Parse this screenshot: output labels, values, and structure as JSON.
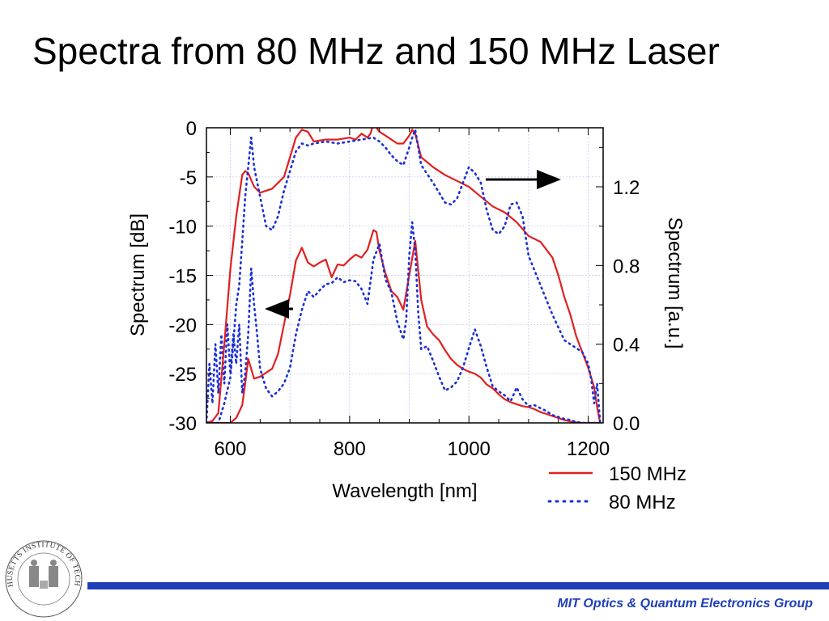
{
  "slide": {
    "title": "Spectra from 80 MHz and 150 MHz Laser",
    "footer": "MIT Optics & Quantum Electronics Group",
    "logo_text": "MASSACHUSETTS INSTITUTE OF TECHNOLOGY"
  },
  "chart_data": {
    "type": "line",
    "title": "",
    "xlabel": "Wavelength [nm]",
    "ylabel_left": "Spectrum [dB]",
    "ylabel_right": "Spectrum [a.u.]",
    "xlim": [
      560,
      1225
    ],
    "ylim_left": [
      -30,
      0
    ],
    "ylim_right": [
      0,
      1.5
    ],
    "x_ticks": [
      600,
      800,
      1000,
      1200
    ],
    "y_ticks_left": [
      0,
      -5,
      -10,
      -15,
      -20,
      -25,
      -30
    ],
    "y_ticks_right": [
      0.0,
      0.4,
      0.8,
      1.2
    ],
    "y_tick_labels_left": [
      "0",
      "-5",
      "-10",
      "-15",
      "-20",
      "-25",
      "-30"
    ],
    "y_tick_labels_right": [
      "0.0",
      "0.4",
      "0.8",
      "1.2"
    ],
    "grid": true,
    "legend_position": "bottom-right, outside plot",
    "series": [
      {
        "name": "150 MHz",
        "axis": "left",
        "scale": "dB",
        "color": "#e02020",
        "style": "solid",
        "x": [
          560,
          580,
          590,
          600,
          610,
          620,
          625,
          630,
          640,
          650,
          670,
          680,
          690,
          700,
          710,
          720,
          730,
          740,
          750,
          760,
          770,
          780,
          790,
          800,
          810,
          820,
          830,
          840,
          845,
          850,
          860,
          870,
          880,
          890,
          900,
          910,
          920,
          930,
          940,
          950,
          960,
          970,
          980,
          990,
          1000,
          1010,
          1020,
          1030,
          1040,
          1050,
          1060,
          1070,
          1080,
          1090,
          1100,
          1110,
          1120,
          1130,
          1140,
          1150,
          1160,
          1170,
          1180,
          1190,
          1200,
          1210,
          1220
        ],
        "y": [
          -30,
          -30,
          -30,
          -30,
          -29.5,
          -28.2,
          -26,
          -23.5,
          -25.5,
          -25.3,
          -24.5,
          -23,
          -20,
          -17,
          -13.5,
          -12.2,
          -13.7,
          -14.1,
          -13.7,
          -13.4,
          -15.2,
          -13.9,
          -14,
          -13.4,
          -12.9,
          -13.2,
          -12.4,
          -10.4,
          -10.6,
          -12.5,
          -14.8,
          -16.6,
          -17.2,
          -18.5,
          -15,
          -11.5,
          -17.5,
          -20.2,
          -21,
          -21.6,
          -22.6,
          -23.5,
          -24.1,
          -24.5,
          -24.8,
          -25,
          -25.4,
          -26.1,
          -26.5,
          -27.1,
          -27.6,
          -27.9,
          -28.1,
          -28.3,
          -28.4,
          -28.6,
          -28.9,
          -29.1,
          -29.3,
          -29.5,
          -29.7,
          -29.85,
          -29.95,
          -30,
          -30,
          -30,
          -30
        ]
      },
      {
        "name": "80 MHz",
        "axis": "left",
        "scale": "dB",
        "color": "#1a2fd6",
        "style": "dotted",
        "x": [
          560,
          565,
          570,
          575,
          580,
          585,
          590,
          595,
          600,
          605,
          610,
          615,
          620,
          625,
          630,
          635,
          640,
          645,
          650,
          660,
          670,
          680,
          690,
          700,
          710,
          720,
          730,
          740,
          750,
          760,
          770,
          780,
          790,
          800,
          810,
          820,
          830,
          840,
          850,
          860,
          870,
          880,
          890,
          895,
          900,
          905,
          910,
          915,
          920,
          930,
          940,
          950,
          960,
          970,
          980,
          990,
          1000,
          1010,
          1020,
          1030,
          1040,
          1050,
          1060,
          1070,
          1080,
          1090,
          1100,
          1110,
          1120,
          1130,
          1140,
          1150,
          1160,
          1170,
          1180,
          1190,
          1200,
          1210,
          1220
        ],
        "y": [
          -30,
          -24,
          -28,
          -22,
          -27,
          -21,
          -26,
          -20,
          -25,
          -21,
          -24,
          -20,
          -27,
          -25,
          -21,
          -14.3,
          -18,
          -21,
          -24.5,
          -26.5,
          -27.3,
          -26.8,
          -26,
          -24.4,
          -21,
          -18.5,
          -16.6,
          -17.2,
          -16.5,
          -15.9,
          -15.8,
          -15.2,
          -15.7,
          -15.5,
          -15.6,
          -16.4,
          -17.9,
          -13.4,
          -11.8,
          -15.4,
          -16.7,
          -19.7,
          -21.5,
          -19.5,
          -13,
          -9.6,
          -12.5,
          -18.8,
          -22.5,
          -22.2,
          -23.7,
          -25.3,
          -26.7,
          -26.4,
          -25.8,
          -24.4,
          -22.4,
          -20.5,
          -22.2,
          -24.4,
          -26.3,
          -26.8,
          -27.2,
          -27.8,
          -26.4,
          -27.6,
          -28.3,
          -28.2,
          -28.5,
          -28.8,
          -29.2,
          -29.4,
          -29.6,
          -29.7,
          -29.9,
          -30,
          -30,
          -30,
          -30
        ]
      },
      {
        "name": "150 MHz",
        "axis": "right",
        "scale": "linear",
        "color": "#e02020",
        "style": "solid",
        "x": [
          560,
          570,
          580,
          590,
          600,
          610,
          620,
          625,
          630,
          640,
          650,
          670,
          690,
          700,
          710,
          720,
          730,
          740,
          760,
          780,
          800,
          810,
          820,
          830,
          835,
          840,
          845,
          850,
          860,
          870,
          880,
          890,
          900,
          905,
          910,
          920,
          940,
          960,
          980,
          1000,
          1020,
          1040,
          1060,
          1080,
          1100,
          1120,
          1140,
          1150,
          1160,
          1170,
          1180,
          1190,
          1200,
          1210,
          1215,
          1220
        ],
        "y": [
          0.0,
          0.01,
          0.05,
          0.4,
          0.78,
          1.05,
          1.26,
          1.28,
          1.27,
          1.2,
          1.17,
          1.19,
          1.25,
          1.35,
          1.45,
          1.49,
          1.48,
          1.43,
          1.44,
          1.44,
          1.45,
          1.44,
          1.47,
          1.45,
          1.47,
          1.52,
          1.5,
          1.48,
          1.46,
          1.44,
          1.42,
          1.42,
          1.46,
          1.49,
          1.47,
          1.35,
          1.3,
          1.26,
          1.23,
          1.2,
          1.15,
          1.1,
          1.07,
          1.02,
          0.95,
          0.92,
          0.84,
          0.75,
          0.64,
          0.55,
          0.44,
          0.36,
          0.28,
          0.18,
          0.08,
          0.0
        ]
      },
      {
        "name": "80 MHz",
        "axis": "right",
        "scale": "linear",
        "color": "#1a2fd6",
        "style": "dotted",
        "x": [
          560,
          580,
          590,
          600,
          605,
          610,
          615,
          620,
          625,
          630,
          635,
          640,
          650,
          660,
          670,
          680,
          690,
          700,
          710,
          720,
          730,
          740,
          760,
          780,
          800,
          820,
          840,
          850,
          860,
          870,
          880,
          890,
          900,
          905,
          910,
          920,
          940,
          950,
          960,
          970,
          980,
          990,
          1000,
          1010,
          1020,
          1030,
          1040,
          1050,
          1060,
          1070,
          1080,
          1090,
          1100,
          1120,
          1140,
          1160,
          1180,
          1190,
          1200,
          1205,
          1210,
          1215,
          1220
        ],
        "y": [
          0.0,
          0.0,
          0.1,
          0.23,
          0.4,
          0.6,
          0.7,
          0.92,
          1.15,
          1.3,
          1.45,
          1.3,
          1.15,
          1.0,
          0.98,
          1.05,
          1.18,
          1.28,
          1.38,
          1.42,
          1.41,
          1.42,
          1.43,
          1.42,
          1.43,
          1.44,
          1.45,
          1.43,
          1.4,
          1.36,
          1.33,
          1.31,
          1.4,
          1.45,
          1.49,
          1.31,
          1.22,
          1.17,
          1.12,
          1.11,
          1.14,
          1.22,
          1.3,
          1.27,
          1.22,
          1.08,
          0.98,
          0.96,
          1.0,
          1.11,
          1.12,
          1.05,
          0.85,
          0.7,
          0.55,
          0.42,
          0.38,
          0.36,
          0.3,
          0.22,
          0.1,
          0.2,
          0.0
        ]
      }
    ],
    "annotations": [
      {
        "type": "arrow",
        "direction": "left",
        "meaning": "lower curves use left axis (dB)"
      },
      {
        "type": "arrow",
        "direction": "right",
        "meaning": "upper curves use right axis (a.u.)"
      }
    ]
  }
}
